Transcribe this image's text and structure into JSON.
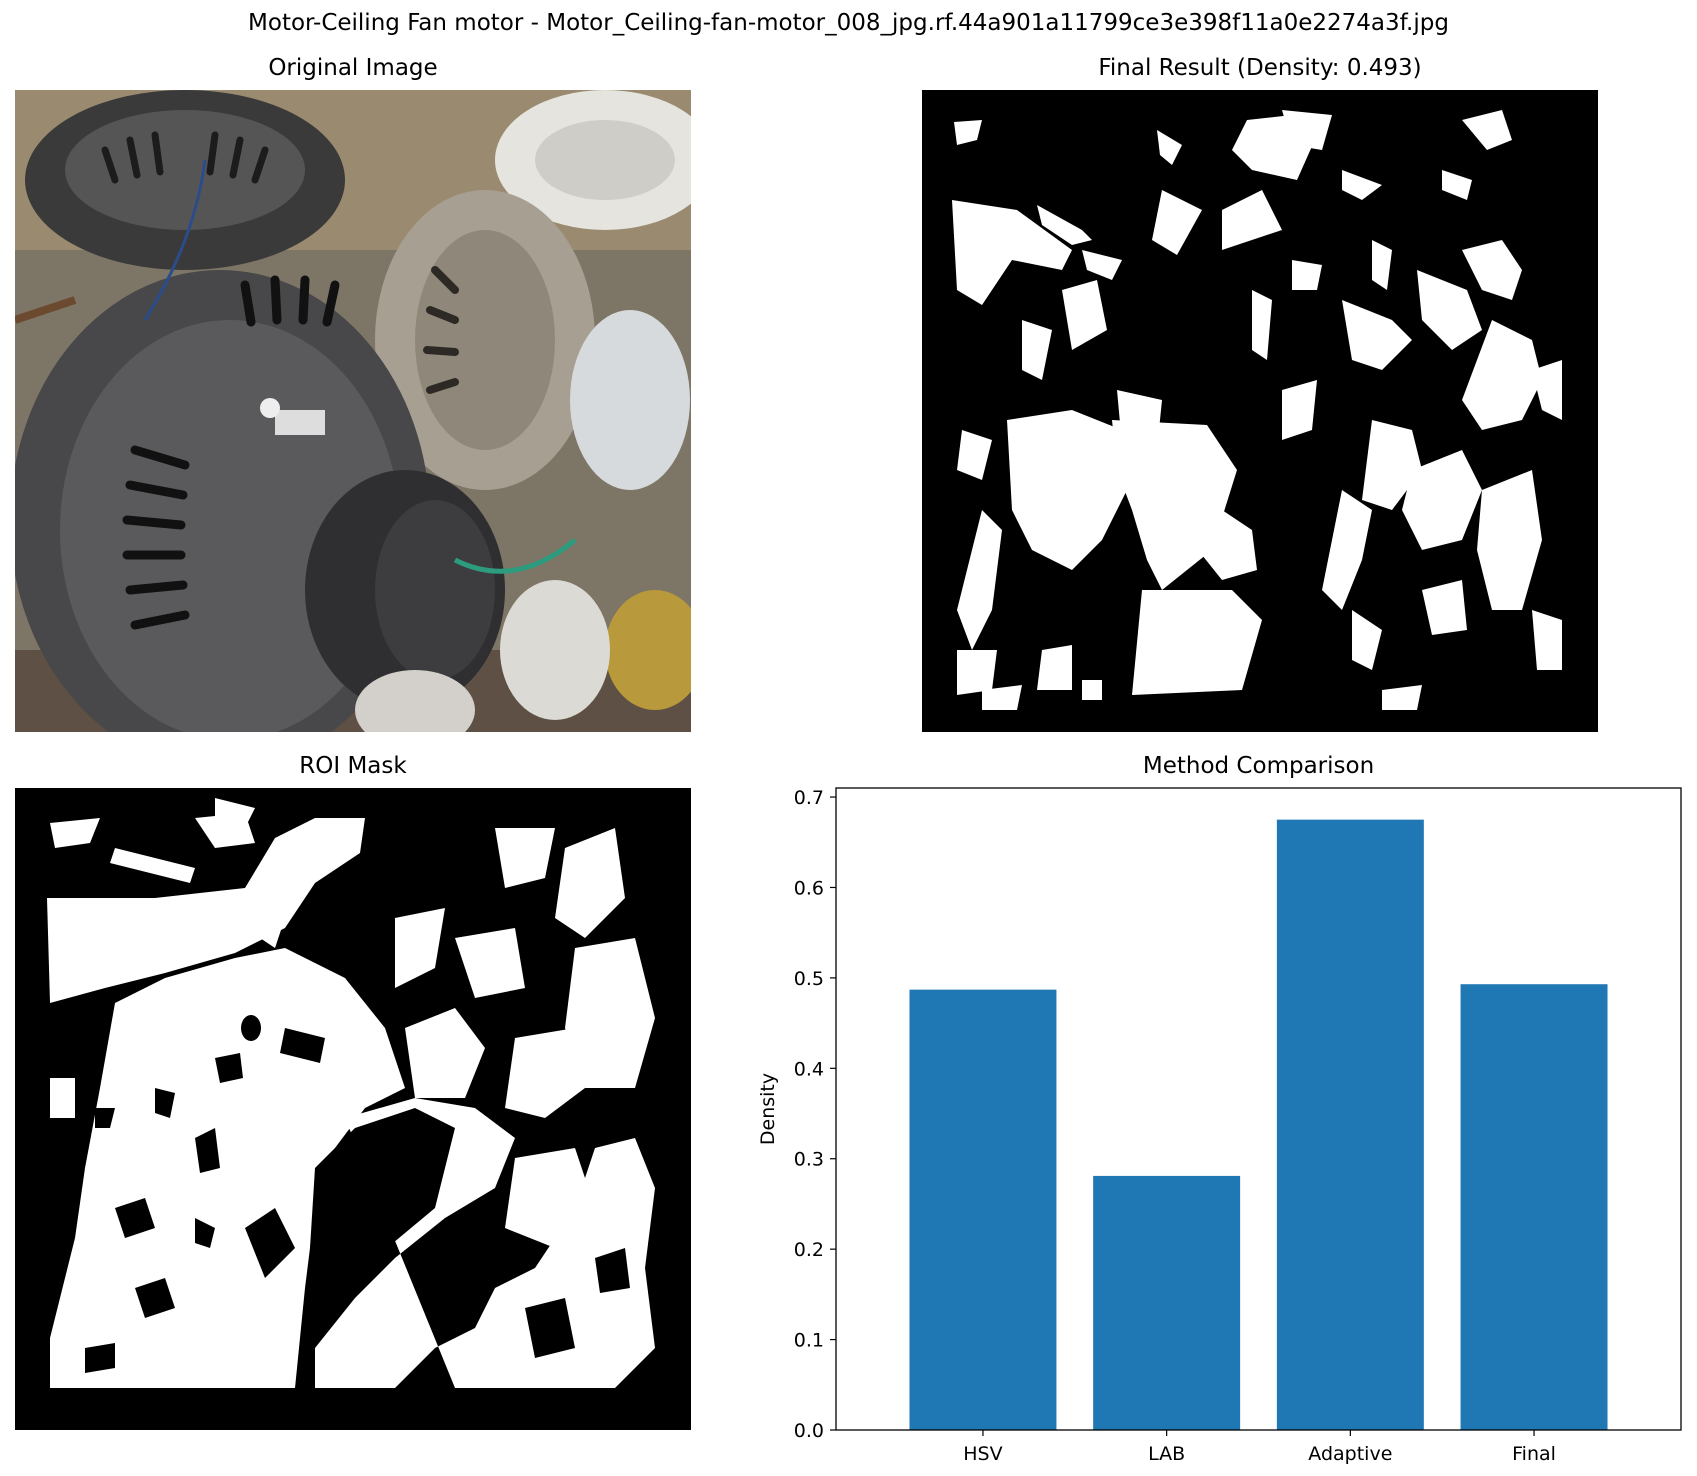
{
  "figure": {
    "title": "Motor-Ceiling Fan motor - Motor_Ceiling-fan-motor_008_jpg.rf.44a901a11799ce3e398f11a0e2274a3f.jpg"
  },
  "panels": {
    "original": {
      "title": "Original Image"
    },
    "final": {
      "title": "Final Result (Density: 0.493)"
    },
    "roi": {
      "title": "ROI Mask"
    },
    "comparison": {
      "title": "Method Comparison"
    }
  },
  "colors": {
    "bar": "#1f77b4",
    "mask_bg": "#000000",
    "mask_fg": "#ffffff"
  },
  "chart_data": {
    "type": "bar",
    "title": "Method Comparison",
    "xlabel": "",
    "ylabel": "Density",
    "categories": [
      "HSV",
      "LAB",
      "Adaptive",
      "Final"
    ],
    "values": [
      0.487,
      0.281,
      0.675,
      0.493
    ],
    "ylim": [
      0,
      0.71
    ],
    "yticks": [
      "0.0",
      "0.1",
      "0.2",
      "0.3",
      "0.4",
      "0.5",
      "0.6",
      "0.7"
    ],
    "grid": false
  }
}
